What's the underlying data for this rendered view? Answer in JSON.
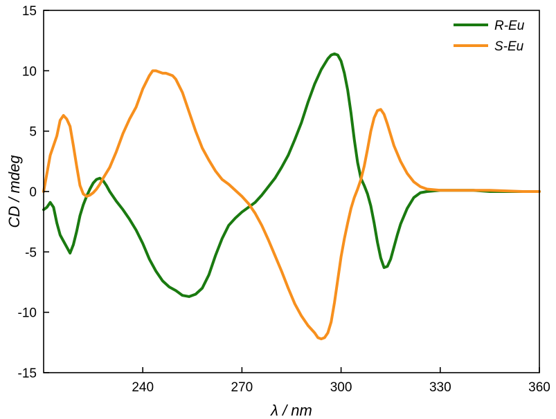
{
  "chart_data": {
    "type": "line",
    "xlabel": "λ / nm",
    "ylabel": "CD / mdeg",
    "xlim": [
      210,
      360
    ],
    "ylim": [
      -15,
      15
    ],
    "x_ticks": [
      240,
      270,
      300,
      330,
      360
    ],
    "y_ticks": [
      -15,
      -10,
      -5,
      0,
      5,
      10,
      15
    ],
    "legend_position": "top-right",
    "grid": false,
    "series": [
      {
        "name": "R-Eu",
        "color": "#1a7a10",
        "points": [
          [
            210,
            -1.5
          ],
          [
            211,
            -1.3
          ],
          [
            212,
            -0.9
          ],
          [
            213,
            -1.3
          ],
          [
            214,
            -2.6
          ],
          [
            215,
            -3.6
          ],
          [
            216,
            -4.1
          ],
          [
            217,
            -4.6
          ],
          [
            218,
            -5.1
          ],
          [
            219,
            -4.4
          ],
          [
            220,
            -3.3
          ],
          [
            221,
            -2.0
          ],
          [
            222,
            -1.1
          ],
          [
            223,
            -0.4
          ],
          [
            224,
            0.2
          ],
          [
            225,
            0.7
          ],
          [
            226,
            1.0
          ],
          [
            227,
            1.1
          ],
          [
            228,
            0.9
          ],
          [
            229,
            0.5
          ],
          [
            230,
            0.0
          ],
          [
            231,
            -0.4
          ],
          [
            232,
            -0.8
          ],
          [
            234,
            -1.5
          ],
          [
            236,
            -2.3
          ],
          [
            238,
            -3.2
          ],
          [
            240,
            -4.3
          ],
          [
            242,
            -5.6
          ],
          [
            244,
            -6.6
          ],
          [
            246,
            -7.4
          ],
          [
            248,
            -7.9
          ],
          [
            250,
            -8.2
          ],
          [
            252,
            -8.6
          ],
          [
            254,
            -8.7
          ],
          [
            256,
            -8.5
          ],
          [
            258,
            -8.0
          ],
          [
            260,
            -6.9
          ],
          [
            262,
            -5.3
          ],
          [
            264,
            -3.9
          ],
          [
            266,
            -2.8
          ],
          [
            268,
            -2.2
          ],
          [
            270,
            -1.7
          ],
          [
            272,
            -1.3
          ],
          [
            274,
            -0.9
          ],
          [
            276,
            -0.3
          ],
          [
            278,
            0.4
          ],
          [
            280,
            1.1
          ],
          [
            282,
            2.0
          ],
          [
            284,
            3.0
          ],
          [
            286,
            4.3
          ],
          [
            288,
            5.7
          ],
          [
            290,
            7.4
          ],
          [
            292,
            8.9
          ],
          [
            294,
            10.1
          ],
          [
            296,
            11.0
          ],
          [
            297,
            11.3
          ],
          [
            298,
            11.4
          ],
          [
            299,
            11.3
          ],
          [
            300,
            10.8
          ],
          [
            301,
            9.8
          ],
          [
            302,
            8.4
          ],
          [
            303,
            6.5
          ],
          [
            304,
            4.3
          ],
          [
            305,
            2.4
          ],
          [
            306,
            1.1
          ],
          [
            307,
            0.5
          ],
          [
            308,
            -0.2
          ],
          [
            309,
            -1.2
          ],
          [
            310,
            -2.6
          ],
          [
            311,
            -4.2
          ],
          [
            312,
            -5.5
          ],
          [
            313,
            -6.3
          ],
          [
            314,
            -6.2
          ],
          [
            315,
            -5.6
          ],
          [
            316,
            -4.6
          ],
          [
            317,
            -3.6
          ],
          [
            318,
            -2.7
          ],
          [
            320,
            -1.4
          ],
          [
            322,
            -0.5
          ],
          [
            324,
            -0.1
          ],
          [
            326,
            0.0
          ],
          [
            330,
            0.1
          ],
          [
            335,
            0.1
          ],
          [
            340,
            0.1
          ],
          [
            345,
            0.0
          ],
          [
            350,
            0.0
          ],
          [
            355,
            0.0
          ],
          [
            360,
            0.0
          ]
        ]
      },
      {
        "name": "S-Eu",
        "color": "#f7901e",
        "points": [
          [
            210,
            0.0
          ],
          [
            211,
            1.5
          ],
          [
            212,
            3.0
          ],
          [
            213,
            3.8
          ],
          [
            214,
            4.6
          ],
          [
            215,
            5.9
          ],
          [
            216,
            6.3
          ],
          [
            217,
            6.0
          ],
          [
            218,
            5.4
          ],
          [
            219,
            3.8
          ],
          [
            220,
            2.1
          ],
          [
            221,
            0.5
          ],
          [
            222,
            -0.2
          ],
          [
            223,
            -0.4
          ],
          [
            224,
            -0.3
          ],
          [
            225,
            -0.1
          ],
          [
            226,
            0.2
          ],
          [
            227,
            0.6
          ],
          [
            228,
            1.1
          ],
          [
            230,
            2.0
          ],
          [
            232,
            3.3
          ],
          [
            234,
            4.8
          ],
          [
            236,
            6.0
          ],
          [
            238,
            7.0
          ],
          [
            240,
            8.5
          ],
          [
            242,
            9.6
          ],
          [
            243,
            10.0
          ],
          [
            244,
            10.0
          ],
          [
            245,
            9.9
          ],
          [
            246,
            9.8
          ],
          [
            247,
            9.8
          ],
          [
            248,
            9.7
          ],
          [
            249,
            9.6
          ],
          [
            250,
            9.3
          ],
          [
            252,
            8.2
          ],
          [
            254,
            6.6
          ],
          [
            256,
            5.0
          ],
          [
            258,
            3.6
          ],
          [
            260,
            2.6
          ],
          [
            262,
            1.7
          ],
          [
            264,
            1.0
          ],
          [
            266,
            0.6
          ],
          [
            268,
            0.1
          ],
          [
            270,
            -0.4
          ],
          [
            272,
            -1.0
          ],
          [
            274,
            -1.8
          ],
          [
            276,
            -2.8
          ],
          [
            278,
            -4.0
          ],
          [
            280,
            -5.3
          ],
          [
            282,
            -6.6
          ],
          [
            284,
            -8.0
          ],
          [
            286,
            -9.3
          ],
          [
            288,
            -10.3
          ],
          [
            290,
            -11.1
          ],
          [
            292,
            -11.7
          ],
          [
            293,
            -12.1
          ],
          [
            294,
            -12.2
          ],
          [
            295,
            -12.1
          ],
          [
            296,
            -11.7
          ],
          [
            297,
            -10.8
          ],
          [
            298,
            -9.2
          ],
          [
            299,
            -7.3
          ],
          [
            300,
            -5.4
          ],
          [
            301,
            -3.9
          ],
          [
            302,
            -2.6
          ],
          [
            303,
            -1.4
          ],
          [
            304,
            -0.5
          ],
          [
            305,
            0.2
          ],
          [
            306,
            1.0
          ],
          [
            307,
            2.1
          ],
          [
            308,
            3.5
          ],
          [
            309,
            5.0
          ],
          [
            310,
            6.1
          ],
          [
            311,
            6.7
          ],
          [
            312,
            6.8
          ],
          [
            313,
            6.4
          ],
          [
            314,
            5.6
          ],
          [
            315,
            4.7
          ],
          [
            316,
            3.8
          ],
          [
            318,
            2.5
          ],
          [
            320,
            1.5
          ],
          [
            322,
            0.8
          ],
          [
            324,
            0.4
          ],
          [
            326,
            0.2
          ],
          [
            330,
            0.1
          ],
          [
            335,
            0.1
          ],
          [
            340,
            0.1
          ],
          [
            345,
            0.1
          ],
          [
            350,
            0.05
          ],
          [
            355,
            0.0
          ],
          [
            360,
            0.0
          ]
        ]
      }
    ]
  }
}
